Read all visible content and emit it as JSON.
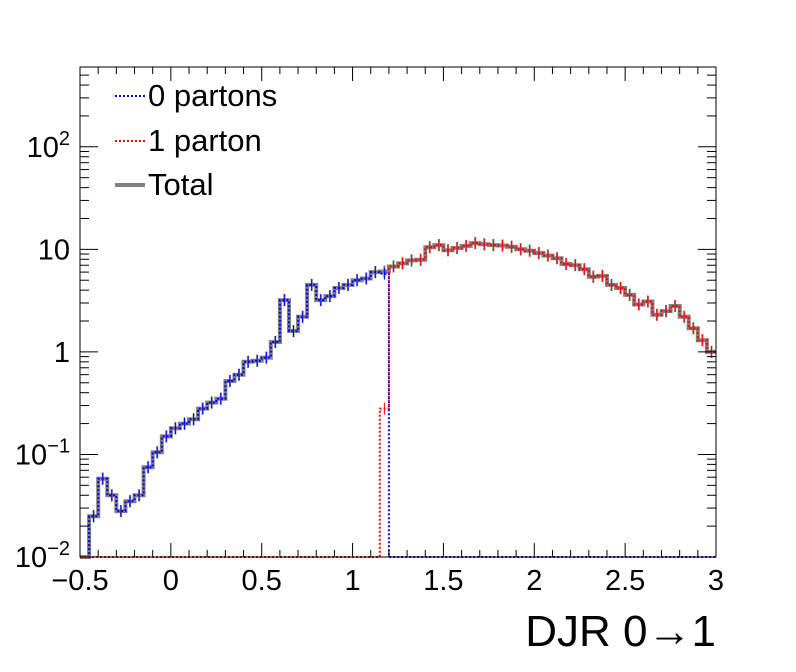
{
  "chart_data": {
    "type": "line",
    "subtype": "step-histogram",
    "title": "",
    "xlabel": "DJR 0→1",
    "ylabel": "",
    "xlim": [
      -0.5,
      3.0
    ],
    "ylim": [
      0.01,
      600
    ],
    "yscale": "log",
    "bin_width": 0.05,
    "grid": false,
    "legend_position": "top-left",
    "x_ticks": [
      {
        "value": -0.5,
        "label": "−0.5"
      },
      {
        "value": 0,
        "label": "0"
      },
      {
        "value": 0.5,
        "label": "0.5"
      },
      {
        "value": 1,
        "label": "1"
      },
      {
        "value": 1.5,
        "label": "1.5"
      },
      {
        "value": 2,
        "label": "2"
      },
      {
        "value": 2.5,
        "label": "2.5"
      },
      {
        "value": 3,
        "label": "3"
      }
    ],
    "y_ticks": [
      {
        "value": 0.01,
        "base": "10",
        "exp": "−2"
      },
      {
        "value": 0.1,
        "base": "10",
        "exp": "−1"
      },
      {
        "value": 1,
        "base": "1",
        "exp": ""
      },
      {
        "value": 10,
        "base": "10",
        "exp": ""
      },
      {
        "value": 100,
        "base": "10",
        "exp": "2"
      }
    ],
    "x": [
      -0.475,
      -0.425,
      -0.375,
      -0.325,
      -0.275,
      -0.225,
      -0.175,
      -0.125,
      -0.075,
      -0.025,
      0.025,
      0.075,
      0.125,
      0.175,
      0.225,
      0.275,
      0.325,
      0.375,
      0.425,
      0.475,
      0.525,
      0.575,
      0.625,
      0.675,
      0.725,
      0.775,
      0.825,
      0.875,
      0.925,
      0.975,
      1.025,
      1.075,
      1.125,
      1.175,
      1.225,
      1.275,
      1.325,
      1.375,
      1.425,
      1.475,
      1.525,
      1.575,
      1.625,
      1.675,
      1.725,
      1.775,
      1.825,
      1.875,
      1.925,
      1.975,
      2.025,
      2.075,
      2.125,
      2.175,
      2.225,
      2.275,
      2.325,
      2.375,
      2.425,
      2.475,
      2.525,
      2.575,
      2.625,
      2.675,
      2.725,
      2.775,
      2.825,
      2.875,
      2.925,
      2.975
    ],
    "series": [
      {
        "name": "0 partons",
        "color": "#0000ff",
        "values": [
          0.01,
          0.025,
          0.058,
          0.04,
          0.028,
          0.035,
          0.04,
          0.075,
          0.105,
          0.15,
          0.18,
          0.2,
          0.22,
          0.28,
          0.32,
          0.35,
          0.52,
          0.6,
          0.8,
          0.82,
          0.88,
          1.25,
          3.2,
          1.6,
          2.2,
          4.5,
          3.2,
          3.5,
          4.2,
          4.5,
          5.0,
          5.2,
          6.0,
          5.8,
          0.01,
          0.01,
          0.01,
          0.01,
          0.01,
          0.01,
          0.01,
          0.01,
          0.01,
          0.01,
          0.01,
          0.01,
          0.01,
          0.01,
          0.01,
          0.01,
          0.01,
          0.01,
          0.01,
          0.01,
          0.01,
          0.01,
          0.01,
          0.01,
          0.01,
          0.01,
          0.01,
          0.01,
          0.01,
          0.01,
          0.01,
          0.01,
          0.01,
          0.01,
          0.01,
          0.01
        ]
      },
      {
        "name": "1 parton",
        "color": "#ff0000",
        "values": [
          0.01,
          0.01,
          0.01,
          0.01,
          0.01,
          0.01,
          0.01,
          0.01,
          0.01,
          0.01,
          0.01,
          0.01,
          0.01,
          0.01,
          0.01,
          0.01,
          0.01,
          0.01,
          0.01,
          0.01,
          0.01,
          0.01,
          0.01,
          0.01,
          0.01,
          0.01,
          0.01,
          0.01,
          0.01,
          0.01,
          0.01,
          0.01,
          0.01,
          0.28,
          6.8,
          7.3,
          7.8,
          7.9,
          10.5,
          11.0,
          9.8,
          10.3,
          10.8,
          11.5,
          11.2,
          11.0,
          10.9,
          10.6,
          10.0,
          9.7,
          9.2,
          8.7,
          8.2,
          7.2,
          7.0,
          6.4,
          5.4,
          5.5,
          4.5,
          4.2,
          3.6,
          2.9,
          3.1,
          2.3,
          2.5,
          2.8,
          2.2,
          1.7,
          1.3,
          1.0
        ]
      },
      {
        "name": "Total",
        "color": "#808080",
        "values": [
          0.01,
          0.025,
          0.058,
          0.04,
          0.028,
          0.035,
          0.04,
          0.075,
          0.105,
          0.15,
          0.18,
          0.2,
          0.22,
          0.28,
          0.32,
          0.35,
          0.52,
          0.6,
          0.8,
          0.82,
          0.88,
          1.25,
          3.2,
          1.6,
          2.2,
          4.5,
          3.2,
          3.5,
          4.2,
          4.5,
          5.0,
          5.2,
          6.0,
          6.08,
          6.8,
          7.3,
          7.8,
          7.9,
          10.5,
          11.0,
          9.8,
          10.3,
          10.8,
          11.5,
          11.2,
          11.0,
          10.9,
          10.6,
          10.0,
          9.7,
          9.2,
          8.7,
          8.2,
          7.2,
          7.0,
          6.4,
          5.4,
          5.5,
          4.5,
          4.2,
          3.6,
          2.9,
          3.1,
          2.3,
          2.5,
          2.8,
          2.2,
          1.7,
          1.3,
          1.0
        ]
      }
    ]
  }
}
